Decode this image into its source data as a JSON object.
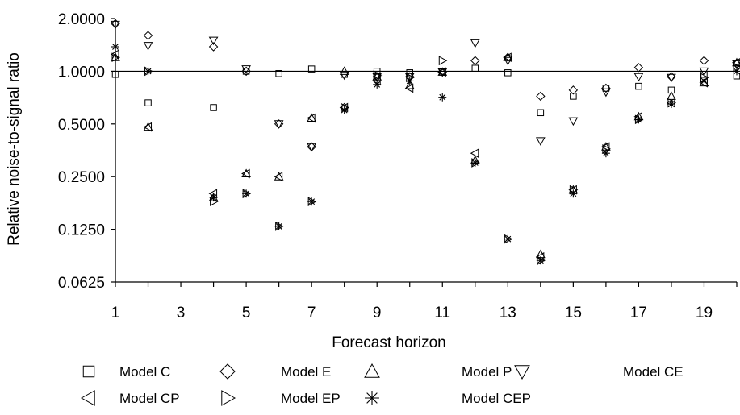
{
  "chart_data": {
    "type": "scatter",
    "xlabel": "Forecast horizon",
    "ylabel": "Relative noise-to-signal ratio",
    "y_scale": "log2",
    "ylim": [
      0.0625,
      2.0
    ],
    "xlim": [
      1,
      20
    ],
    "x_ticks": [
      1,
      3,
      5,
      7,
      9,
      11,
      13,
      15,
      17,
      19
    ],
    "y_ticks": [
      {
        "value": 2.0,
        "label": "2.0000"
      },
      {
        "value": 1.0,
        "label": "1.0000"
      },
      {
        "value": 0.5,
        "label": "0.5000"
      },
      {
        "value": 0.25,
        "label": "0.2500"
      },
      {
        "value": 0.125,
        "label": "0.1250"
      },
      {
        "value": 0.0625,
        "label": "0.0625"
      }
    ],
    "reference_line": 1.0,
    "legend_position": "bottom",
    "series": [
      {
        "name": "Model C",
        "marker": "square",
        "points": [
          [
            1,
            0.96
          ],
          [
            2,
            0.66
          ],
          [
            4,
            0.62
          ],
          [
            5,
            1.0
          ],
          [
            6,
            0.97
          ],
          [
            7,
            1.03
          ],
          [
            8,
            0.96
          ],
          [
            9,
            1.0
          ],
          [
            10,
            0.98
          ],
          [
            11,
            0.99
          ],
          [
            12,
            1.04
          ],
          [
            13,
            0.98
          ],
          [
            14,
            0.58
          ],
          [
            15,
            0.72
          ],
          [
            16,
            0.8
          ],
          [
            17,
            0.82
          ],
          [
            18,
            0.78
          ],
          [
            19,
            0.96
          ],
          [
            20,
            0.94
          ]
        ]
      },
      {
        "name": "Model E",
        "marker": "diamond",
        "points": [
          [
            1,
            1.87
          ],
          [
            2,
            1.6
          ],
          [
            4,
            1.38
          ],
          [
            5,
            1.0
          ],
          [
            6,
            0.5
          ],
          [
            7,
            0.37
          ],
          [
            8,
            0.62
          ],
          [
            9,
            0.93
          ],
          [
            10,
            0.93
          ],
          [
            11,
            0.99
          ],
          [
            12,
            1.15
          ],
          [
            13,
            1.2
          ],
          [
            14,
            0.72
          ],
          [
            15,
            0.78
          ],
          [
            16,
            0.8
          ],
          [
            17,
            1.05
          ],
          [
            18,
            0.93
          ],
          [
            19,
            1.15
          ],
          [
            20,
            1.1
          ]
        ]
      },
      {
        "name": "Model P",
        "marker": "triangle-up",
        "points": [
          [
            1,
            1.2
          ],
          [
            2,
            0.48
          ],
          [
            4,
            0.19
          ],
          [
            5,
            0.26
          ],
          [
            6,
            0.25
          ],
          [
            7,
            0.54
          ],
          [
            8,
            1.0
          ],
          [
            9,
            0.93
          ],
          [
            10,
            0.83
          ],
          [
            11,
            0.99
          ],
          [
            12,
            0.31
          ],
          [
            13,
            1.2
          ],
          [
            14,
            0.09
          ],
          [
            15,
            0.21
          ],
          [
            16,
            0.37
          ],
          [
            17,
            0.55
          ],
          [
            18,
            0.72
          ],
          [
            19,
            0.86
          ],
          [
            20,
            1.12
          ]
        ]
      },
      {
        "name": "Model CE",
        "marker": "triangle-down",
        "points": [
          [
            1,
            1.85
          ],
          [
            2,
            1.4
          ],
          [
            4,
            1.5
          ],
          [
            5,
            1.03
          ],
          [
            6,
            0.5
          ],
          [
            7,
            0.37
          ],
          [
            8,
            0.95
          ],
          [
            9,
            0.93
          ],
          [
            10,
            0.93
          ],
          [
            11,
            0.99
          ],
          [
            12,
            1.45
          ],
          [
            13,
            1.15
          ],
          [
            14,
            0.4
          ],
          [
            15,
            0.52
          ],
          [
            16,
            0.76
          ],
          [
            17,
            0.93
          ],
          [
            18,
            0.92
          ],
          [
            19,
            1.0
          ],
          [
            20,
            1.1
          ]
        ]
      },
      {
        "name": "Model CP",
        "marker": "triangle-left",
        "points": [
          [
            1,
            1.25
          ],
          [
            2,
            0.48
          ],
          [
            4,
            0.2
          ],
          [
            5,
            0.26
          ],
          [
            6,
            0.25
          ],
          [
            7,
            0.54
          ],
          [
            8,
            0.62
          ],
          [
            9,
            0.88
          ],
          [
            10,
            0.8
          ],
          [
            11,
            0.99
          ],
          [
            12,
            0.34
          ],
          [
            13,
            1.2
          ],
          [
            14,
            0.087
          ],
          [
            15,
            0.21
          ],
          [
            16,
            0.37
          ],
          [
            17,
            0.55
          ],
          [
            18,
            0.66
          ],
          [
            19,
            0.86
          ],
          [
            20,
            1.12
          ]
        ]
      },
      {
        "name": "Model EP",
        "marker": "triangle-right",
        "points": [
          [
            1,
            1.2
          ],
          [
            2,
            1.0
          ],
          [
            4,
            0.18
          ],
          [
            5,
            0.2
          ],
          [
            6,
            0.13
          ],
          [
            7,
            0.18
          ],
          [
            8,
            0.62
          ],
          [
            9,
            0.95
          ],
          [
            10,
            0.92
          ],
          [
            11,
            1.15
          ],
          [
            12,
            0.3
          ],
          [
            13,
            0.11
          ],
          [
            14,
            0.083
          ],
          [
            15,
            0.21
          ],
          [
            16,
            0.36
          ],
          [
            17,
            0.53
          ],
          [
            18,
            0.66
          ],
          [
            19,
            0.92
          ],
          [
            20,
            1.05
          ]
        ]
      },
      {
        "name": "Model CEP",
        "marker": "asterisk",
        "points": [
          [
            1,
            1.38
          ],
          [
            2,
            1.0
          ],
          [
            4,
            0.19
          ],
          [
            5,
            0.2
          ],
          [
            6,
            0.13
          ],
          [
            7,
            0.18
          ],
          [
            8,
            0.6
          ],
          [
            9,
            0.84
          ],
          [
            10,
            0.88
          ],
          [
            11,
            0.71
          ],
          [
            12,
            0.3
          ],
          [
            13,
            0.11
          ],
          [
            14,
            0.083
          ],
          [
            15,
            0.2
          ],
          [
            16,
            0.34
          ],
          [
            17,
            0.53
          ],
          [
            18,
            0.65
          ],
          [
            19,
            0.88
          ],
          [
            20,
            1.0
          ]
        ]
      }
    ]
  }
}
